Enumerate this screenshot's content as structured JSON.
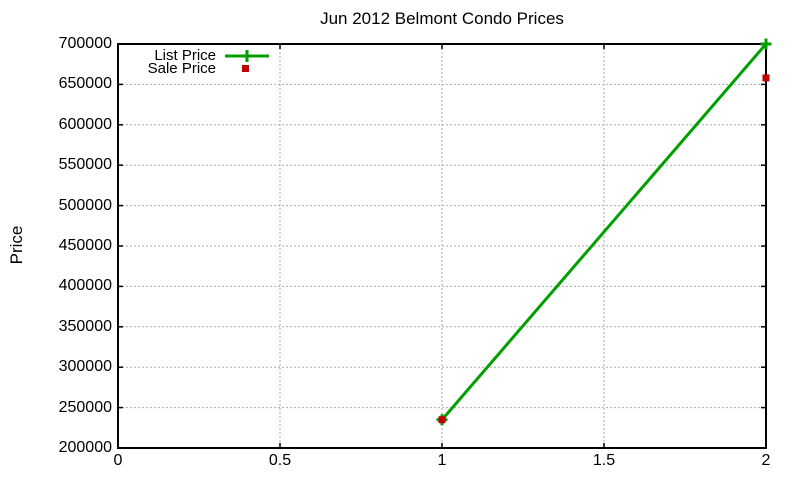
{
  "title": "Jun 2012 Belmont Condo Prices",
  "chart_data": {
    "type": "line",
    "title": "Jun 2012 Belmont Condo Prices",
    "xlabel": "",
    "ylabel": "Price",
    "xlim": [
      0,
      2
    ],
    "ylim": [
      200000,
      700000
    ],
    "grid": true,
    "legend_position": "top-left",
    "xticks": [
      {
        "v": 0,
        "label": "0"
      },
      {
        "v": 0.5,
        "label": "0.5"
      },
      {
        "v": 1,
        "label": "1"
      },
      {
        "v": 1.5,
        "label": "1.5"
      },
      {
        "v": 2,
        "label": "2"
      }
    ],
    "yticks": [
      {
        "v": 200000,
        "label": "200000"
      },
      {
        "v": 250000,
        "label": "250000"
      },
      {
        "v": 300000,
        "label": "300000"
      },
      {
        "v": 350000,
        "label": "350000"
      },
      {
        "v": 400000,
        "label": "400000"
      },
      {
        "v": 450000,
        "label": "450000"
      },
      {
        "v": 500000,
        "label": "500000"
      },
      {
        "v": 550000,
        "label": "550000"
      },
      {
        "v": 600000,
        "label": "600000"
      },
      {
        "v": 650000,
        "label": "650000"
      },
      {
        "v": 700000,
        "label": "700000"
      }
    ],
    "series": [
      {
        "name": "List Price",
        "style": "linespoints",
        "marker": "plus",
        "color": "#00a000",
        "x": [
          1,
          2
        ],
        "y": [
          235000,
          700000
        ]
      },
      {
        "name": "Sale Price",
        "style": "points",
        "marker": "square",
        "color": "#c00000",
        "x": [
          1,
          2
        ],
        "y": [
          235000,
          658000
        ]
      }
    ],
    "colors": {
      "background": "#ffffff",
      "grid": "#aaaaaa",
      "axis": "#000000",
      "text": "#000000"
    }
  }
}
